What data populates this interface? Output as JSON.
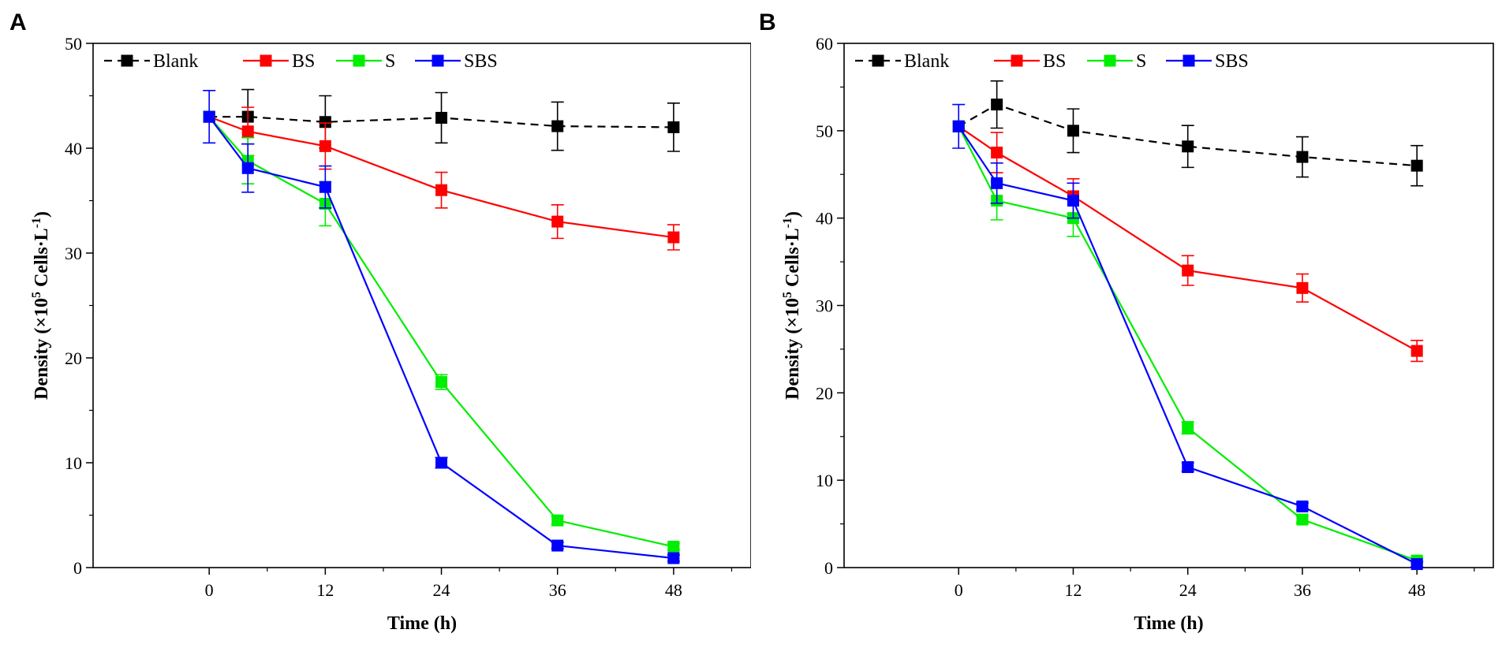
{
  "colors": {
    "blank": "#000000",
    "bs": "#ff0000",
    "s": "#00ee00",
    "sbs": "#0000ff"
  },
  "chart_data": [
    {
      "type": "line",
      "panel_label": "A",
      "xlabel": "Time (h)",
      "ylabel": "Density (×10",
      "ylabel_superscript": "5",
      "ylabel_unit": " Cells·L",
      "ylabel_unit_superscript": "-1",
      "ylabel_close": ")",
      "xlim": [
        -12,
        56
      ],
      "ylim": [
        0,
        50
      ],
      "x_ticks": [
        0,
        12,
        24,
        36,
        48
      ],
      "x_tick_labels": [
        "0",
        "12",
        "24",
        "36",
        "48"
      ],
      "y_ticks": [
        0,
        10,
        20,
        30,
        40,
        50
      ],
      "y_tick_labels": [
        "0",
        "10",
        "20",
        "30",
        "40",
        "50"
      ],
      "legend_position": "top-left",
      "series": [
        {
          "name": "Blank",
          "color_key": "blank",
          "dashed": true,
          "x": [
            0,
            4,
            12,
            24,
            36,
            48
          ],
          "values": [
            43,
            43,
            42.5,
            42.9,
            42.1,
            42
          ],
          "errors": [
            0,
            2.6,
            2.5,
            2.4,
            2.3,
            2.3
          ]
        },
        {
          "name": "BS",
          "color_key": "bs",
          "dashed": false,
          "x": [
            0,
            4,
            12,
            24,
            36,
            48
          ],
          "values": [
            43,
            41.6,
            40.2,
            36,
            33,
            31.5
          ],
          "errors": [
            0,
            2.3,
            2.2,
            1.7,
            1.6,
            1.2
          ]
        },
        {
          "name": "S",
          "color_key": "s",
          "dashed": false,
          "x": [
            0,
            4,
            12,
            24,
            36,
            48
          ],
          "values": [
            43,
            38.8,
            34.7,
            17.7,
            4.5,
            2
          ],
          "errors": [
            0,
            2.2,
            2.1,
            0.7,
            0.4,
            0.3
          ]
        },
        {
          "name": "SBS",
          "color_key": "sbs",
          "dashed": false,
          "x": [
            0,
            4,
            12,
            24,
            36,
            48
          ],
          "values": [
            43,
            38.1,
            36.3,
            10,
            2.1,
            0.9
          ],
          "errors": [
            2.5,
            2.3,
            2.0,
            0.5,
            0.3,
            0.3
          ]
        }
      ]
    },
    {
      "type": "line",
      "panel_label": "B",
      "xlabel": "Time (h)",
      "ylabel": "Density (×10",
      "ylabel_superscript": "5",
      "ylabel_unit": " Cells·L",
      "ylabel_unit_superscript": "-1",
      "ylabel_close": ")",
      "xlim": [
        -12,
        56
      ],
      "ylim": [
        0,
        60
      ],
      "x_ticks": [
        0,
        12,
        24,
        36,
        48
      ],
      "x_tick_labels": [
        "0",
        "12",
        "24",
        "36",
        "48"
      ],
      "y_ticks": [
        0,
        10,
        20,
        30,
        40,
        50,
        60
      ],
      "y_tick_labels": [
        "0",
        "10",
        "20",
        "30",
        "40",
        "50",
        "60"
      ],
      "legend_position": "top-left",
      "series": [
        {
          "name": "Blank",
          "color_key": "blank",
          "dashed": true,
          "x": [
            0,
            4,
            12,
            24,
            36,
            48
          ],
          "values": [
            50.5,
            53,
            50,
            48.2,
            47,
            46
          ],
          "errors": [
            0,
            2.7,
            2.5,
            2.4,
            2.3,
            2.3
          ]
        },
        {
          "name": "BS",
          "color_key": "bs",
          "dashed": false,
          "x": [
            0,
            4,
            12,
            24,
            36,
            48
          ],
          "values": [
            50.5,
            47.5,
            42.5,
            34,
            32,
            24.8
          ],
          "errors": [
            0,
            2.3,
            2.0,
            1.7,
            1.6,
            1.2
          ]
        },
        {
          "name": "S",
          "color_key": "s",
          "dashed": false,
          "x": [
            0,
            4,
            12,
            24,
            36,
            48
          ],
          "values": [
            50.5,
            42,
            40,
            16,
            5.5,
            0.8
          ],
          "errors": [
            0,
            2.2,
            2.1,
            0.7,
            0.4,
            0.3
          ]
        },
        {
          "name": "SBS",
          "color_key": "sbs",
          "dashed": false,
          "x": [
            0,
            4,
            12,
            24,
            36,
            48
          ],
          "values": [
            50.5,
            44,
            42,
            11.5,
            7,
            0.4
          ],
          "errors": [
            2.5,
            2.3,
            2.0,
            0.5,
            0.4,
            0.3
          ]
        }
      ]
    }
  ]
}
